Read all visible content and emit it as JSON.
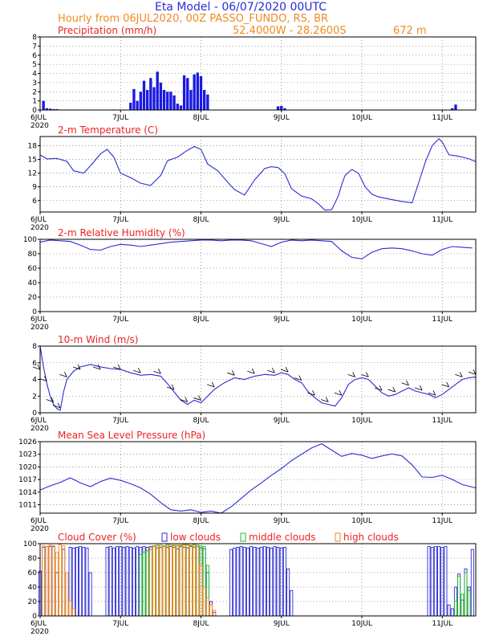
{
  "header": {
    "title": "Eta Model - 06/07/2020 00UTC",
    "line2": "Hourly from 06JUL2020, 00Z  PASSO_FUNDO, RS, BR",
    "coords": "52.4000W - 28.2600S",
    "elevation": "672  m"
  },
  "colors": {
    "series": "#2b2bd6",
    "title": "#ee2222",
    "low": "#2b2bd6",
    "middle": "#22bb22",
    "high": "#f08a1f"
  },
  "x_axis": {
    "start_label": "6JUL",
    "year_label": "2020",
    "ticks": [
      "6JUL",
      "7JUL",
      "8JUL",
      "9JUL",
      "10JUL",
      "11JUL"
    ],
    "x_range_hours": [
      0,
      130
    ]
  },
  "chart_data": [
    {
      "type": "bar",
      "id": "precip",
      "title": "Precipitation (mm/h)",
      "ylim": [
        0,
        8
      ],
      "yticks": [
        0,
        1,
        2,
        3,
        4,
        5,
        6,
        7,
        8
      ],
      "x_hours": [
        1,
        2,
        3,
        4,
        5,
        6,
        8,
        10,
        22,
        27,
        28,
        29,
        30,
        31,
        32,
        33,
        34,
        35,
        36,
        37,
        38,
        39,
        40,
        41,
        42,
        43,
        44,
        45,
        46,
        47,
        48,
        49,
        50,
        71,
        72,
        73,
        123,
        124
      ],
      "values": [
        1.0,
        0.2,
        0.15,
        0.1,
        0.1,
        0.05,
        0.05,
        0.05,
        0.05,
        0.8,
        2.3,
        1.0,
        2.0,
        3.2,
        2.2,
        3.5,
        2.5,
        4.2,
        3.0,
        2.2,
        2.0,
        2.0,
        1.6,
        0.7,
        0.5,
        3.8,
        3.5,
        2.2,
        3.9,
        4.1,
        3.7,
        2.2,
        1.7,
        0.4,
        0.45,
        0.2,
        0.2,
        0.6
      ]
    },
    {
      "type": "line",
      "id": "temperature",
      "title": "2-m Temperature (C)",
      "ylim": [
        3.5,
        20
      ],
      "yticks": [
        6,
        9,
        12,
        15,
        18
      ],
      "x_hours": [
        0,
        2,
        5,
        8,
        10,
        13,
        16,
        18,
        20,
        22,
        24,
        27,
        30,
        33,
        36,
        38,
        41,
        44,
        46,
        48,
        50,
        53,
        56,
        58,
        61,
        64,
        67,
        69,
        71,
        73,
        75,
        78,
        81,
        83,
        85,
        87,
        89,
        90,
        91,
        93,
        95,
        97,
        99,
        101,
        103,
        105,
        108,
        111,
        113,
        115,
        117,
        119,
        120,
        122,
        124,
        126,
        128,
        130
      ],
      "values": [
        16.0,
        15.1,
        15.2,
        14.6,
        12.5,
        12.0,
        14.4,
        16.2,
        17.2,
        15.5,
        12.0,
        11.0,
        9.8,
        9.3,
        11.5,
        14.7,
        15.5,
        17.0,
        17.8,
        17.2,
        14.0,
        12.5,
        10.0,
        8.4,
        7.2,
        10.5,
        13.0,
        13.4,
        13.2,
        11.9,
        8.6,
        7.0,
        6.4,
        5.3,
        3.9,
        4.0,
        7.0,
        9.5,
        11.5,
        12.8,
        12.0,
        9.0,
        7.4,
        6.8,
        6.5,
        6.2,
        5.8,
        5.5,
        10.0,
        14.5,
        18.0,
        19.5,
        18.8,
        16.0,
        15.8,
        15.5,
        15.1,
        14.5
      ]
    },
    {
      "type": "line",
      "id": "humidity",
      "title": "2-m Relative Humidity (%)",
      "ylim": [
        0,
        100
      ],
      "yticks": [
        0,
        20,
        40,
        60,
        80,
        100
      ],
      "x_hours": [
        0,
        3,
        6,
        9,
        12,
        15,
        18,
        21,
        24,
        27,
        30,
        33,
        36,
        39,
        42,
        45,
        48,
        51,
        54,
        57,
        60,
        63,
        66,
        69,
        72,
        75,
        78,
        81,
        84,
        87,
        90,
        93,
        96,
        99,
        102,
        105,
        108,
        111,
        114,
        117,
        120,
        123,
        126,
        129
      ],
      "values": [
        96,
        99,
        98,
        97,
        92,
        86,
        85,
        90,
        93,
        92,
        90,
        92,
        94,
        96,
        97,
        98,
        99,
        99,
        98,
        99,
        99,
        98,
        94,
        90,
        96,
        99,
        98,
        99,
        98,
        97,
        84,
        75,
        73,
        82,
        87,
        88,
        87,
        84,
        80,
        78,
        86,
        90,
        89,
        88
      ]
    },
    {
      "type": "line",
      "id": "wind",
      "title": "10-m Wind (m/s)",
      "ylim": [
        0,
        8
      ],
      "yticks": [
        0,
        2,
        4,
        6,
        8
      ],
      "x_hours": [
        0,
        1,
        2,
        3,
        4,
        5,
        6,
        7,
        8,
        10,
        12,
        15,
        18,
        21,
        24,
        27,
        30,
        33,
        36,
        38,
        40,
        42,
        44,
        46,
        48,
        50,
        52,
        55,
        58,
        61,
        64,
        67,
        70,
        72,
        74,
        76,
        78,
        80,
        82,
        84,
        86,
        88,
        90,
        92,
        94,
        96,
        98,
        100,
        102,
        104,
        106,
        108,
        110,
        112,
        114,
        116,
        118,
        120,
        122,
        124,
        126,
        128,
        130
      ],
      "values": [
        8.0,
        5.5,
        3.5,
        2.0,
        1.0,
        0.5,
        0.3,
        2.5,
        4.0,
        5.0,
        5.5,
        5.8,
        5.5,
        5.3,
        5.2,
        4.8,
        4.5,
        4.6,
        4.4,
        3.5,
        2.5,
        1.5,
        1.0,
        1.5,
        1.2,
        2.0,
        2.8,
        3.6,
        4.2,
        4.0,
        4.4,
        4.6,
        4.5,
        4.8,
        4.6,
        4.0,
        3.6,
        2.5,
        1.8,
        1.2,
        1.0,
        0.8,
        1.8,
        3.4,
        4.0,
        4.2,
        4.0,
        3.2,
        2.4,
        2.0,
        2.2,
        2.6,
        3.0,
        2.6,
        2.4,
        2.2,
        1.8,
        2.2,
        2.8,
        3.4,
        4.0,
        4.2,
        4.3
      ]
    },
    {
      "type": "line",
      "id": "pressure",
      "title": "Mean Sea Level Pressure (hPa)",
      "ylim": [
        1009,
        1026
      ],
      "yticks": [
        1011,
        1014,
        1017,
        1020,
        1023,
        1026
      ],
      "x_hours": [
        0,
        3,
        6,
        9,
        12,
        15,
        18,
        21,
        24,
        27,
        30,
        33,
        36,
        39,
        42,
        45,
        48,
        51,
        54,
        57,
        60,
        63,
        66,
        69,
        72,
        75,
        78,
        81,
        84,
        87,
        90,
        93,
        96,
        99,
        102,
        105,
        108,
        111,
        114,
        117,
        120,
        123,
        126,
        130
      ],
      "values": [
        1014.5,
        1015.5,
        1016.3,
        1017.4,
        1016.2,
        1015.3,
        1016.5,
        1017.3,
        1016.8,
        1016.0,
        1015.0,
        1013.5,
        1011.5,
        1009.8,
        1009.5,
        1009.8,
        1009.2,
        1009.5,
        1009.0,
        1010.5,
        1012.5,
        1014.5,
        1016.2,
        1018.0,
        1019.6,
        1021.5,
        1023.0,
        1024.5,
        1025.5,
        1024.0,
        1022.5,
        1023.2,
        1022.8,
        1022.0,
        1022.6,
        1023.1,
        1022.6,
        1020.5,
        1017.6,
        1017.5,
        1018.0,
        1017.0,
        1015.8,
        1015.0
      ]
    },
    {
      "type": "bar",
      "id": "clouds",
      "title": "Cloud Cover (%)",
      "legend": [
        "low clouds",
        "middle clouds",
        "high clouds"
      ],
      "ylim": [
        0,
        100
      ],
      "yticks": [
        0,
        20,
        40,
        60,
        80,
        100
      ],
      "series": [
        {
          "name": "low clouds",
          "x_hours": [
            0,
            1,
            2,
            3,
            4,
            5,
            7,
            9,
            10,
            11,
            12,
            13,
            14,
            15,
            20,
            21,
            22,
            23,
            24,
            25,
            26,
            27,
            28,
            29,
            30,
            31,
            32,
            33,
            34,
            35,
            36,
            37,
            38,
            39,
            40,
            41,
            42,
            43,
            44,
            45,
            46,
            47,
            48,
            49,
            50,
            51,
            52,
            57,
            58,
            59,
            60,
            61,
            62,
            63,
            64,
            65,
            66,
            67,
            68,
            69,
            70,
            71,
            72,
            73,
            74,
            75,
            116,
            117,
            118,
            119,
            120,
            121,
            122,
            123,
            124,
            125,
            126,
            127,
            128,
            129
          ],
          "values": [
            62,
            95,
            96,
            96,
            96,
            60,
            92,
            95,
            94,
            95,
            96,
            95,
            94,
            60,
            95,
            96,
            94,
            96,
            96,
            95,
            96,
            95,
            94,
            96,
            95,
            96,
            95,
            96,
            96,
            94,
            95,
            96,
            95,
            96,
            95,
            93,
            96,
            95,
            94,
            96,
            95,
            96,
            94,
            93,
            60,
            20,
            5,
            92,
            94,
            95,
            96,
            95,
            94,
            96,
            95,
            94,
            95,
            96,
            95,
            94,
            96,
            95,
            94,
            95,
            65,
            35,
            96,
            95,
            96,
            96,
            95,
            96,
            15,
            10,
            40,
            58,
            22,
            65,
            40,
            92
          ]
        },
        {
          "name": "middle clouds",
          "x_hours": [
            30,
            31,
            32,
            33,
            34,
            35,
            36,
            37,
            38,
            39,
            40,
            41,
            42,
            43,
            44,
            45,
            46,
            47,
            48,
            49,
            50,
            124,
            125,
            126,
            127,
            128
          ],
          "values": [
            85,
            88,
            90,
            92,
            97,
            98,
            98,
            97,
            99,
            98,
            98,
            97,
            98,
            99,
            98,
            97,
            99,
            98,
            97,
            96,
            70,
            20,
            55,
            30,
            60,
            35
          ]
        },
        {
          "name": "high clouds",
          "x_hours": [
            1,
            2,
            3,
            4,
            5,
            6,
            7,
            8,
            9,
            10,
            33,
            34,
            35,
            36,
            37,
            38,
            39,
            40,
            41,
            42,
            43,
            44,
            45,
            46,
            47,
            48,
            49,
            50,
            51,
            52
          ],
          "values": [
            97,
            96,
            98,
            97,
            88,
            99,
            97,
            60,
            20,
            10,
            95,
            96,
            97,
            98,
            96,
            97,
            98,
            97,
            98,
            97,
            98,
            99,
            98,
            97,
            96,
            70,
            40,
            25,
            15,
            8
          ]
        }
      ]
    }
  ]
}
